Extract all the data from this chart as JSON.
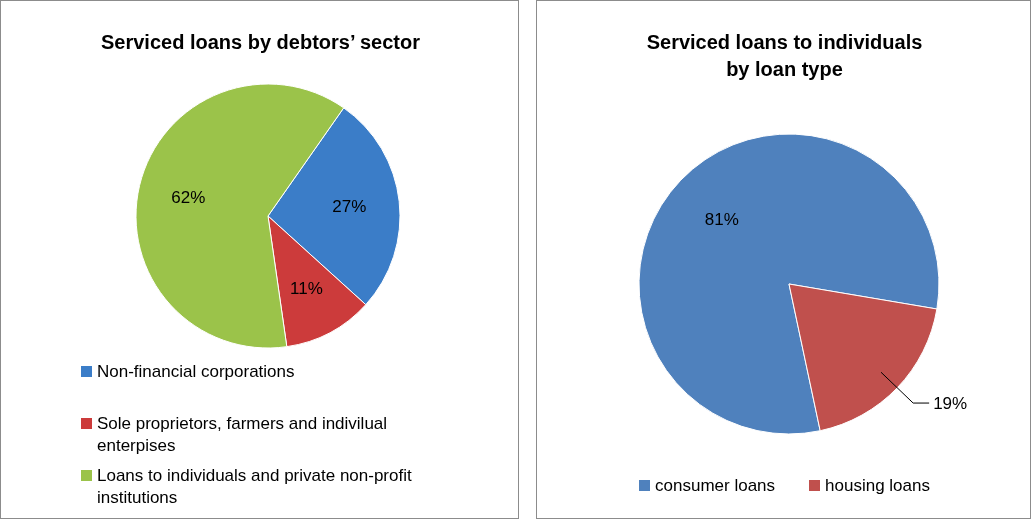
{
  "chart_data": [
    {
      "type": "pie",
      "title": "Serviced loans by debtors’ sector",
      "categories": [
        "Non-financial corporations",
        "Sole proprietors, farmers and indivilual enterpises",
        "Loans to individuals and private non-profit institutions"
      ],
      "values": [
        27,
        11,
        62
      ],
      "colors": [
        "#3b7dc8",
        "#cc3b3b",
        "#9bc34a"
      ],
      "value_labels": [
        "27%",
        "11%",
        "62%"
      ],
      "legend": "bottom"
    },
    {
      "type": "pie",
      "title": "Serviced loans to individuals by loan type",
      "categories": [
        "consumer loans",
        "housing loans"
      ],
      "values": [
        81,
        19
      ],
      "colors": [
        "#4f81bd",
        "#c0504d"
      ],
      "value_labels": [
        "81%",
        "19%"
      ],
      "legend": "bottom"
    }
  ]
}
